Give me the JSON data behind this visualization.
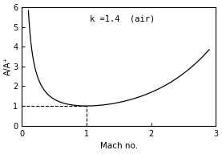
{
  "k": 1.4,
  "annotation": "k =1.4  (air)",
  "xlabel": "Mach no.",
  "ylabel": "A/A⁺",
  "xlim": [
    0,
    3
  ],
  "ylim": [
    0,
    6
  ],
  "xticks": [
    0,
    1,
    2,
    3
  ],
  "yticks": [
    0,
    1,
    2,
    3,
    4,
    5,
    6
  ],
  "dashed_M": 1.0,
  "dashed_A": 1.0,
  "M_start": 0.1,
  "M_end": 2.9,
  "background_color": "#ffffff",
  "line_color": "#000000",
  "dashed_color": "#000000"
}
